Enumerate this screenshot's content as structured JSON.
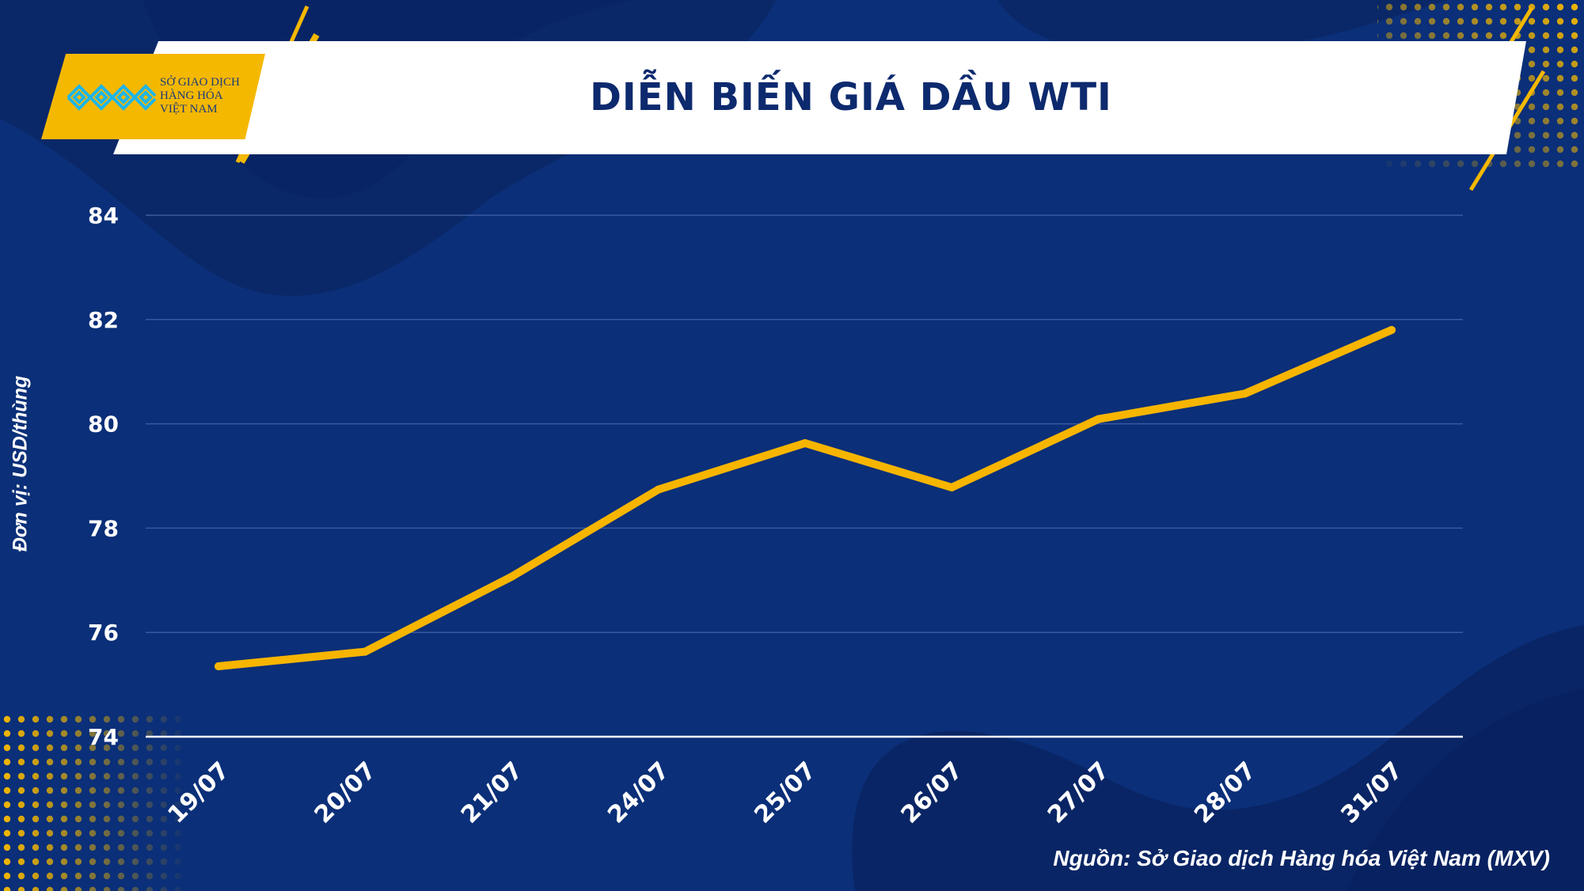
{
  "logo": {
    "line1": "SỞ GIAO DỊCH",
    "line2": "HÀNG HÓA",
    "line3": "VIỆT NAM"
  },
  "source_note": "Nguồn: Sở Giao dịch Hàng hóa Việt Nam (MXV)",
  "colors": {
    "background": "#0b2f78",
    "line": "#f7b500",
    "accent": "#f5b800",
    "title": "#0d2a6e"
  },
  "chart_data": {
    "type": "line",
    "title": "DIỄN BIẾN GIÁ DẦU WTI",
    "xlabel": "",
    "ylabel": "Đơn vị: USD/thùng",
    "categories": [
      "19/07",
      "20/07",
      "21/07",
      "24/07",
      "25/07",
      "26/07",
      "27/07",
      "28/07",
      "31/07"
    ],
    "series": [
      {
        "name": "",
        "values": [
          75.35,
          75.63,
          77.07,
          78.74,
          79.63,
          78.78,
          80.09,
          80.58,
          81.8
        ]
      }
    ],
    "ylim": [
      74,
      84
    ],
    "yticks": [
      "74",
      "76",
      "78",
      "80",
      "82",
      "84"
    ],
    "grid": true,
    "legend": "none"
  }
}
